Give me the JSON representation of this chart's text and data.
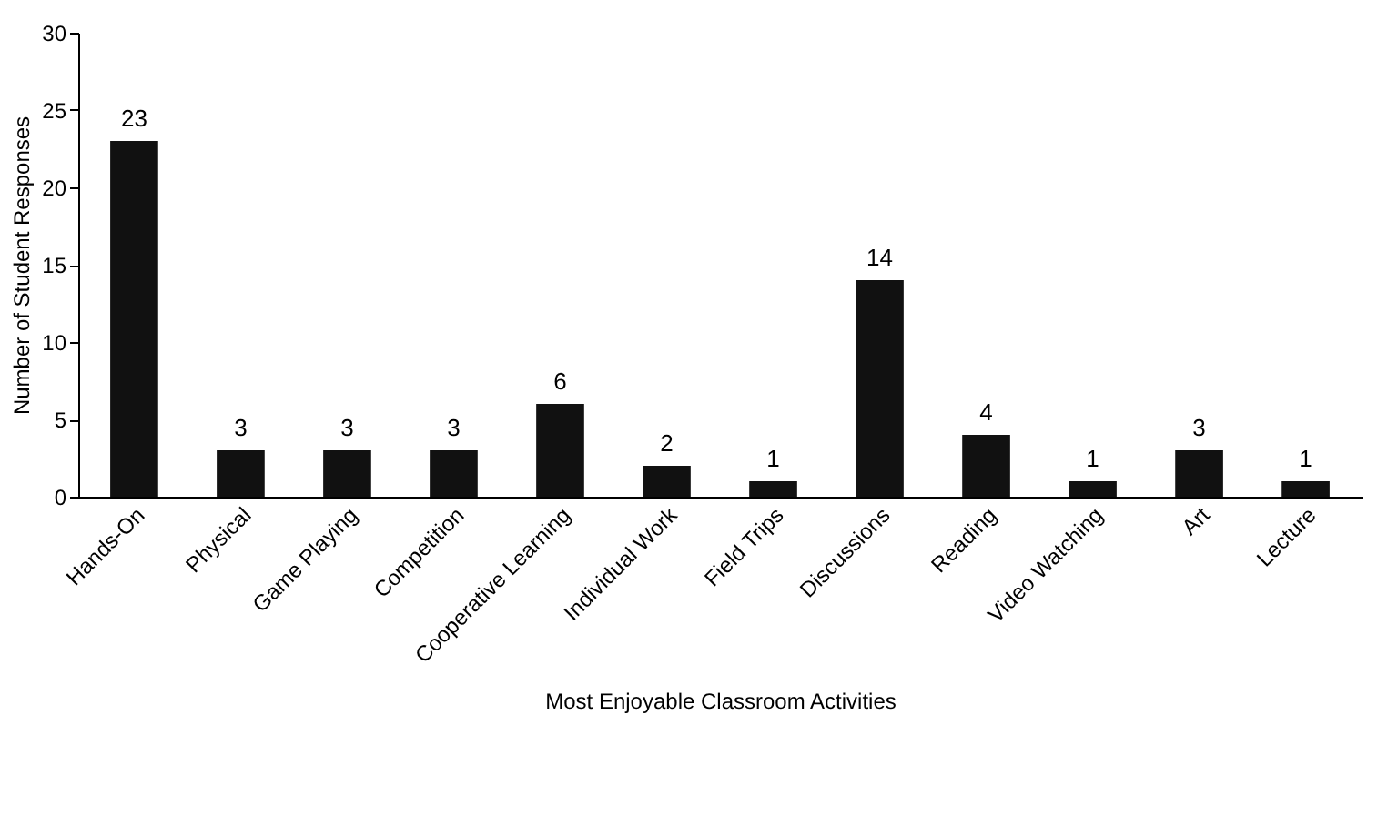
{
  "chart_data": {
    "type": "bar",
    "xlabel": "Most Enjoyable Classroom Activities",
    "ylabel": "Number of Student Responses",
    "categories": [
      "Hands-On",
      "Physical",
      "Game Playing",
      "Competition",
      "Cooperative Learning",
      "Individual Work",
      "Field Trips",
      "Discussions",
      "Reading",
      "Video Watching",
      "Art",
      "Lecture"
    ],
    "values": [
      23,
      3,
      3,
      3,
      6,
      2,
      1,
      14,
      4,
      1,
      3,
      1
    ],
    "color": "#111111",
    "ylim": [
      0,
      30
    ],
    "yticks": [
      0,
      5,
      10,
      15,
      20,
      25,
      30
    ],
    "grid": false,
    "data_labels": true
  }
}
